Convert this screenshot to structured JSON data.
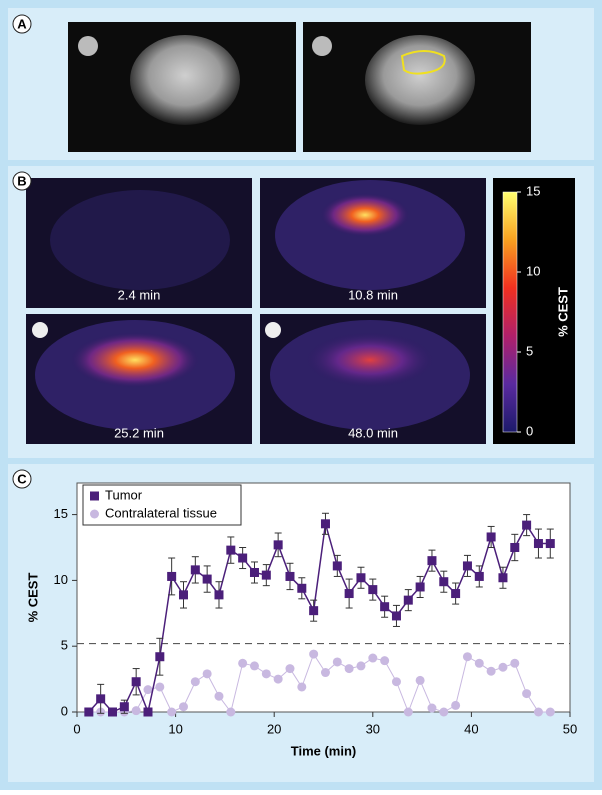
{
  "panel_labels": [
    "A",
    "B",
    "C"
  ],
  "image_labels": [
    "2.4 min",
    "10.8 min",
    "25.2 min",
    "48.0 min"
  ],
  "colorbar": {
    "label": "% CEST",
    "lim": [
      0,
      15
    ],
    "ticks": [
      0,
      5,
      10,
      15
    ],
    "colors": [
      "#1c1a6a",
      "#5a2aa0",
      "#b0206a",
      "#f03020",
      "#f8a020",
      "#ffff70"
    ]
  },
  "chart_data": {
    "type": "line",
    "xlabel": "Time (min)",
    "ylabel": "% CEST",
    "x": [
      1.2,
      2.4,
      3.6,
      4.8,
      6.0,
      7.2,
      8.4,
      9.6,
      10.8,
      12.0,
      13.2,
      14.4,
      15.6,
      16.8,
      18.0,
      19.2,
      20.4,
      21.6,
      22.8,
      24.0,
      25.2,
      26.4,
      27.6,
      28.8,
      30.0,
      31.2,
      32.4,
      33.6,
      34.8,
      36.0,
      37.2,
      38.4,
      39.6,
      40.8,
      42.0,
      43.2,
      44.4,
      45.6,
      46.8,
      48.0
    ],
    "series": [
      {
        "name": "Tumor",
        "color": "#4b1f7a",
        "marker": "square",
        "values": [
          0,
          1.0,
          0,
          0.4,
          2.3,
          0,
          4.2,
          10.3,
          8.9,
          10.8,
          10.1,
          8.9,
          12.3,
          11.7,
          10.6,
          10.4,
          12.7,
          10.3,
          9.4,
          7.7,
          14.3,
          11.1,
          9.0,
          10.2,
          9.3,
          8.0,
          7.3,
          8.5,
          9.5,
          11.5,
          9.9,
          9.0,
          11.1,
          10.3,
          13.3,
          10.2,
          12.5,
          14.2,
          12.8,
          12.8
        ],
        "errors": [
          0.3,
          1.1,
          0.3,
          0.5,
          1.0,
          0.3,
          1.4,
          1.4,
          1.0,
          1.0,
          1.0,
          1.0,
          1.0,
          0.8,
          0.8,
          0.8,
          0.9,
          1.0,
          0.8,
          0.8,
          0.8,
          0.8,
          1.1,
          0.8,
          0.8,
          0.8,
          0.8,
          0.8,
          0.8,
          0.8,
          0.8,
          0.8,
          0.8,
          0.8,
          0.8,
          0.8,
          1.0,
          0.8,
          1.1,
          1.1
        ]
      },
      {
        "name": "Contralateral tissue",
        "color": "#c8b8e0",
        "marker": "circle",
        "values": [
          0,
          0,
          0,
          0,
          0.1,
          1.7,
          1.9,
          0,
          0.4,
          2.3,
          2.9,
          1.2,
          0,
          3.7,
          3.5,
          2.9,
          2.5,
          3.3,
          1.9,
          4.4,
          3.0,
          3.8,
          3.3,
          3.5,
          4.1,
          3.9,
          2.3,
          0,
          2.4,
          0.3,
          0,
          0.5,
          4.2,
          3.7,
          3.1,
          3.4,
          3.7,
          1.4,
          0,
          0
        ]
      }
    ],
    "xlim": [
      0,
      50
    ],
    "ylim": [
      0,
      17.4
    ],
    "xticks": [
      0,
      10,
      20,
      30,
      40,
      50
    ],
    "yticks": [
      0,
      5,
      10,
      15
    ],
    "reference_line": 5.2,
    "legend": "upper left"
  }
}
